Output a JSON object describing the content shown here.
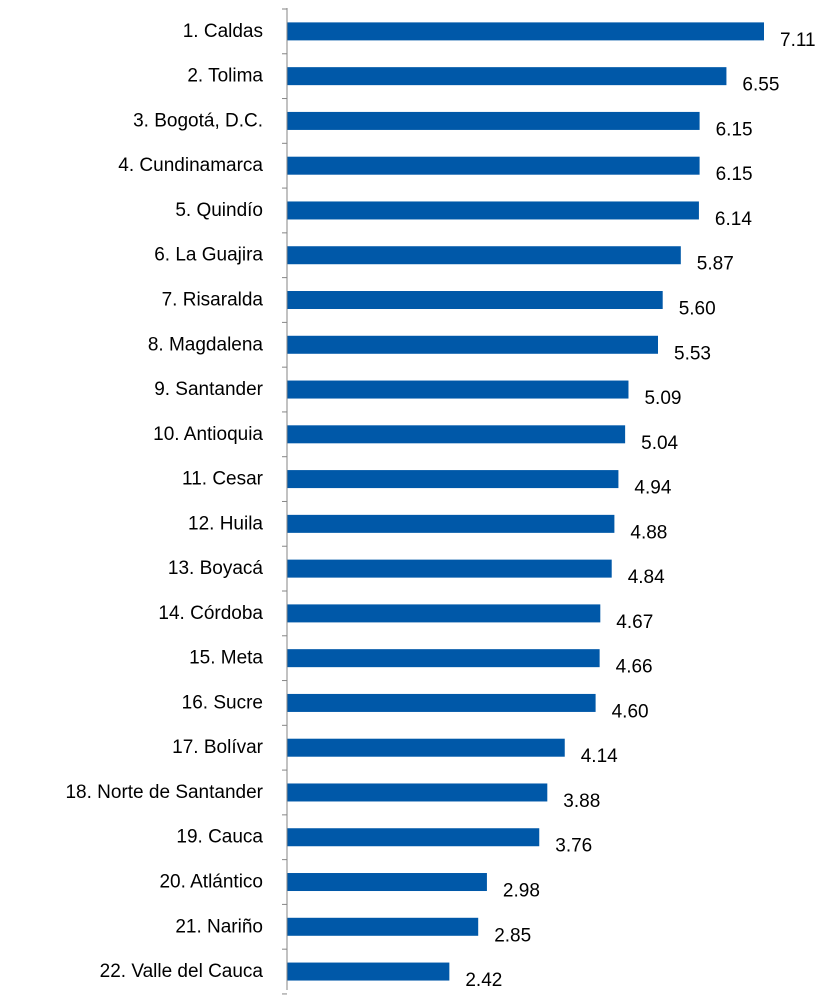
{
  "chart_data": {
    "type": "bar",
    "orientation": "horizontal",
    "title": "",
    "xlabel": "",
    "ylabel": "",
    "xlim": [
      0,
      7.11
    ],
    "grid": false,
    "legend": "none",
    "bar_color": "#0058A8",
    "axis_color": "#868686",
    "categories": [
      "1. Caldas",
      "2. Tolima",
      "3. Bogotá, D.C.",
      "4. Cundinamarca",
      "5. Quindío",
      "6. La Guajira",
      "7. Risaralda",
      "8. Magdalena",
      "9. Santander",
      "10. Antioquia",
      "11. Cesar",
      "12. Huila",
      "13. Boyacá",
      "14. Córdoba",
      "15. Meta",
      "16. Sucre",
      "17. Bolívar",
      "18. Norte de Santander",
      "19. Cauca",
      "20. Atlántico",
      "21. Nariño",
      "22. Valle del Cauca"
    ],
    "values": [
      7.11,
      6.55,
      6.15,
      6.15,
      6.14,
      5.87,
      5.6,
      5.53,
      5.09,
      5.04,
      4.94,
      4.88,
      4.84,
      4.67,
      4.66,
      4.6,
      4.14,
      3.88,
      3.76,
      2.98,
      2.85,
      2.42
    ],
    "value_labels": [
      "7.11",
      "6.55",
      "6.15",
      "6.15",
      "6.14",
      "5.87",
      "5.60",
      "5.53",
      "5.09",
      "5.04",
      "4.94",
      "4.88",
      "4.84",
      "4.67",
      "4.66",
      "4.60",
      "4.14",
      "3.88",
      "3.76",
      "2.98",
      "2.85",
      "2.42"
    ]
  }
}
